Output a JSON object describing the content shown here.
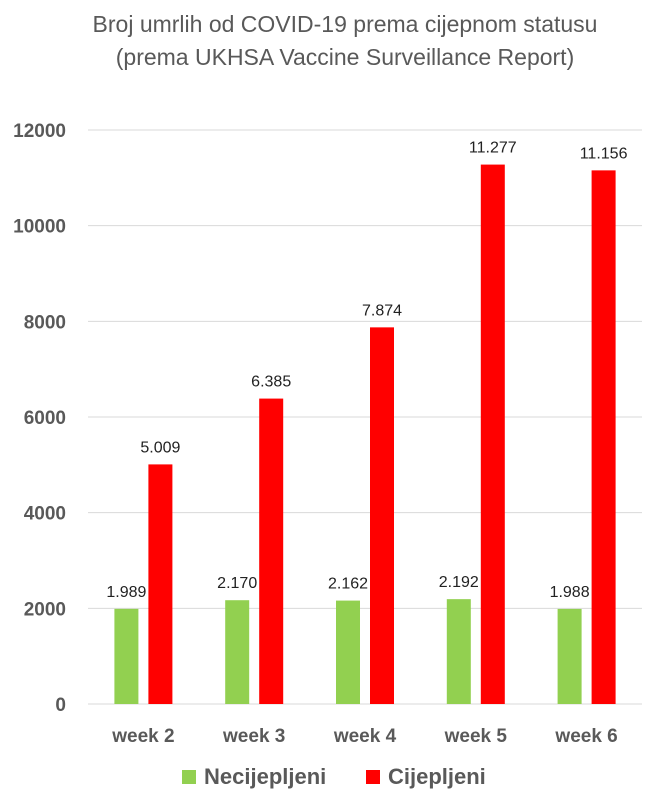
{
  "chart_data": {
    "type": "bar",
    "title": "Broj umrlih od COVID-19 prema cijepnom statusu (prema UKHSA Vaccine Surveillance Report)",
    "xlabel": "",
    "ylabel": "",
    "categories": [
      "week 2",
      "week 3",
      "week 4",
      "week 5",
      "week 6"
    ],
    "series": [
      {
        "name": "Necijepljeni",
        "color": "#92d050",
        "values": [
          1989,
          2170,
          2162,
          2192,
          1988
        ],
        "labels": [
          "1.989",
          "2.170",
          "2.162",
          "2.192",
          "1.988"
        ]
      },
      {
        "name": "Cijepljeni",
        "color": "#ff0000",
        "values": [
          5009,
          6385,
          7874,
          11277,
          11156
        ],
        "labels": [
          "5.009",
          "6.385",
          "7.874",
          "11.277",
          "11.156"
        ]
      }
    ],
    "ylim": [
      0,
      12000
    ],
    "yticks": [
      0,
      2000,
      4000,
      6000,
      8000,
      10000,
      12000
    ],
    "grid": true,
    "gridColor": "#d9d9d9",
    "legend_position": "bottom"
  }
}
